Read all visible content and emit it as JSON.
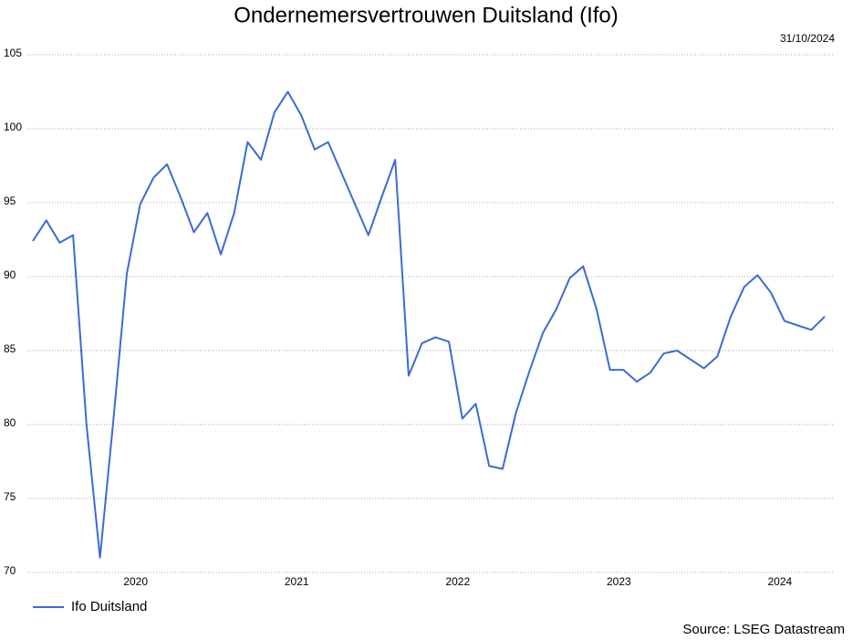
{
  "chart_data": {
    "type": "line",
    "title": "Ondernemersvertrouwen Duitsland (Ifo)",
    "date": "31/10/2024",
    "source": "Source: LSEG Datastream",
    "categories": [
      null,
      null,
      null,
      null,
      null,
      null,
      null,
      null,
      "2020",
      null,
      null,
      null,
      null,
      null,
      null,
      null,
      null,
      null,
      null,
      null,
      "2021",
      null,
      null,
      null,
      null,
      null,
      null,
      null,
      null,
      null,
      null,
      null,
      "2022",
      null,
      null,
      null,
      null,
      null,
      null,
      null,
      null,
      null,
      null,
      null,
      "2023",
      null,
      null,
      null,
      null,
      null,
      null,
      null,
      null,
      null,
      null,
      null,
      "2024",
      null,
      null,
      null
    ],
    "series": [
      {
        "name": "Ifo Duitsland",
        "color": "#3b6ad8",
        "values": [
          92.4,
          93.8,
          92.3,
          92.8,
          80.0,
          71.0,
          80.3,
          90.2,
          94.9,
          96.7,
          97.6,
          95.4,
          93.0,
          94.3,
          91.5,
          94.3,
          99.1,
          97.9,
          101.1,
          102.5,
          100.9,
          98.6,
          99.1,
          97.0,
          94.9,
          92.8,
          95.4,
          97.9,
          83.3,
          85.5,
          85.9,
          85.6,
          80.4,
          81.4,
          77.2,
          77.0,
          80.8,
          83.6,
          86.2,
          87.8,
          89.9,
          90.7,
          87.8,
          83.7,
          83.7,
          82.9,
          83.5,
          84.8,
          85.0,
          84.4,
          83.8,
          84.6,
          87.3,
          89.3,
          90.1,
          88.9,
          87.0,
          86.7,
          86.4,
          87.3
        ]
      }
    ],
    "ylim": [
      70,
      105
    ],
    "yticks": [
      70,
      75,
      80,
      85,
      90,
      95,
      100,
      105
    ],
    "grid": true,
    "legend": "bottom-left"
  }
}
